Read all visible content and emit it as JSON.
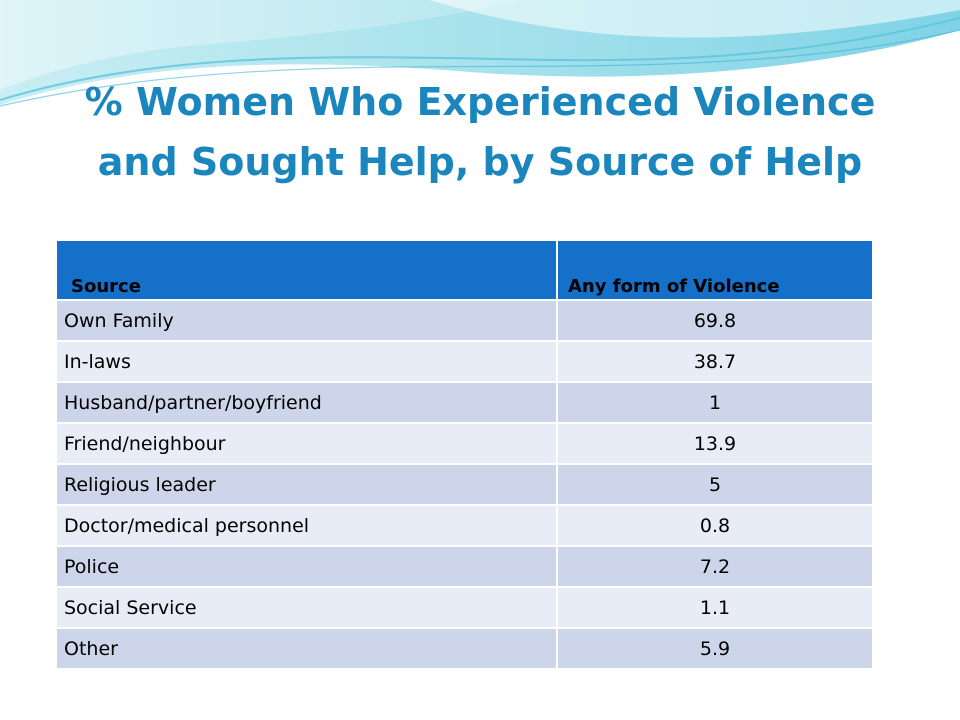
{
  "slide": {
    "title_line1": "% Women Who Experienced Violence",
    "title_line2": "and Sought Help, by Source of Help"
  },
  "table": {
    "headers": [
      "Source",
      "Any form of Violence"
    ],
    "rows": [
      {
        "source": "Own Family",
        "value": "69.8"
      },
      {
        "source": "In-laws",
        "value": "38.7"
      },
      {
        "source": "Husband/partner/boyfriend",
        "value": "1"
      },
      {
        "source": "Friend/neighbour",
        "value": "13.9"
      },
      {
        "source": "Religious leader",
        "value": "5"
      },
      {
        "source": "Doctor/medical personnel",
        "value": "0.8"
      },
      {
        "source": "Police",
        "value": "7.2"
      },
      {
        "source": "Social Service",
        "value": "1.1"
      },
      {
        "source": "Other",
        "value": "5.9"
      }
    ]
  },
  "colors": {
    "title": "#1a86bd",
    "header_bg": "#1570c9",
    "row_odd": "#cdd5ea",
    "row_even": "#e8ecf6"
  }
}
